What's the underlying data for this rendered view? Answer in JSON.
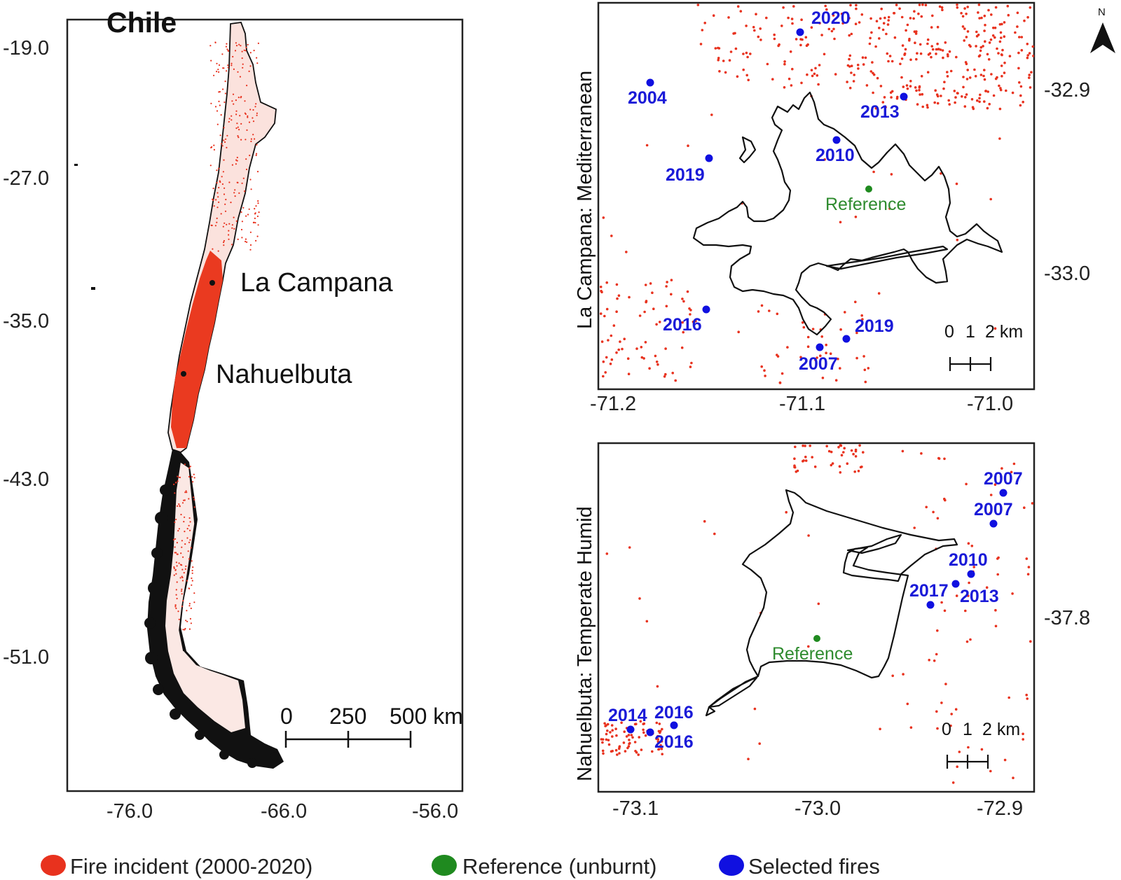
{
  "main_map": {
    "title": "Chile",
    "y_ticks": [
      "-19.0",
      "-27.0",
      "-35.0",
      "-43.0",
      "-51.0"
    ],
    "x_ticks": [
      "-76.0",
      "-66.0",
      "-56.0"
    ],
    "site_labels": [
      "La Campana",
      "Nahuelbuta"
    ],
    "scale_bar": [
      "0",
      "250",
      "500 km"
    ]
  },
  "inset_top": {
    "side_label": "La Campana: Mediterranean",
    "x_ticks": [
      "-71.2",
      "-71.1",
      "-71.0"
    ],
    "y_ticks": [
      "-32.9",
      "-33.0"
    ],
    "reference_label": "Reference",
    "fires": [
      "2020",
      "2004",
      "2013",
      "2010",
      "2019",
      "2016",
      "2019",
      "2007"
    ],
    "scale_bar": [
      "0",
      "1",
      "2 km"
    ],
    "north": "N"
  },
  "inset_bottom": {
    "side_label": "Nahuelbuta: Temperate Humid",
    "x_ticks": [
      "-73.1",
      "-73.0",
      "-72.9"
    ],
    "y_ticks": [
      "-37.8"
    ],
    "reference_label": "Reference",
    "fires": [
      "2007",
      "2007",
      "2010",
      "2017",
      "2013",
      "2014",
      "2016",
      "2016"
    ],
    "scale_bar": [
      "0",
      "1",
      "2 km"
    ]
  },
  "legend": {
    "fire": {
      "label": "Fire incident (2000-2020)",
      "color": "#e8321e"
    },
    "reference": {
      "label": "Reference (unburnt)",
      "color": "#1f8a1f"
    },
    "selected": {
      "label": "Selected fires",
      "color": "#1010e0"
    }
  }
}
